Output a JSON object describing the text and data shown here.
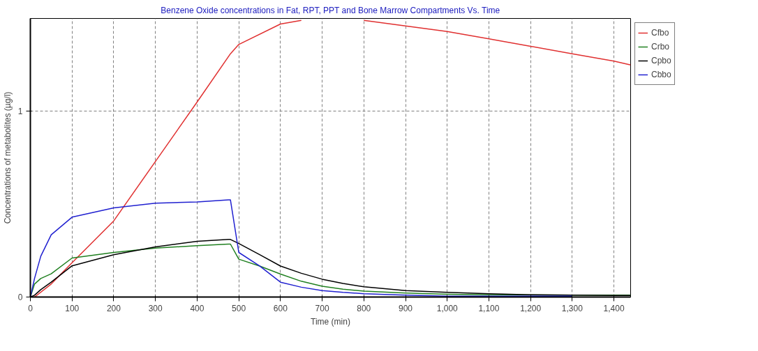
{
  "chart_data": {
    "type": "line",
    "title": "Benzene Oxide concentrations in Fat, RPT, PPT and Bone Marrow Compartments Vs. Time",
    "xlabel": "Time (min)",
    "ylabel": "Concentrations of metabolites (µg/l)",
    "x": [
      0,
      10,
      25,
      50,
      100,
      200,
      300,
      400,
      475,
      480,
      500,
      550,
      600,
      650,
      700,
      750,
      800,
      900,
      1000,
      1100,
      1200,
      1300,
      1400,
      1440
    ],
    "series": [
      {
        "name": "Cfbo",
        "color": "#e03030",
        "x": [
          0,
          10,
          50,
          100,
          200,
          300,
          400,
          480,
          500,
          600,
          650,
          700,
          750,
          800,
          900,
          1000,
          1100,
          1200,
          1300,
          1400,
          1440
        ],
        "values": [
          0,
          0,
          0.07,
          0.185,
          0.41,
          0.73,
          1.05,
          1.31,
          1.36,
          1.47,
          1.49,
          null,
          null,
          1.49,
          1.46,
          1.43,
          1.39,
          1.35,
          1.31,
          1.27,
          1.25
        ]
      },
      {
        "name": "Crbo",
        "color": "#208020",
        "values": [
          0,
          0.07,
          0.1,
          0.125,
          0.21,
          0.24,
          0.263,
          0.277,
          0.285,
          0.285,
          0.204,
          0.167,
          0.124,
          0.085,
          0.058,
          0.042,
          0.032,
          0.022,
          0.015,
          0.012,
          0.011,
          0.01,
          0.01,
          0.01
        ]
      },
      {
        "name": "Cpbo",
        "color": "#000000",
        "values": [
          0,
          0.01,
          0.04,
          0.08,
          0.168,
          0.228,
          0.27,
          0.3,
          0.31,
          0.31,
          0.288,
          0.228,
          0.167,
          0.128,
          0.096,
          0.073,
          0.055,
          0.035,
          0.025,
          0.018,
          0.012,
          0.01,
          0.008,
          0.008
        ]
      },
      {
        "name": "Cbbo",
        "color": "#2020d0",
        "values": [
          0,
          0.1,
          0.22,
          0.335,
          0.43,
          0.48,
          0.505,
          0.512,
          0.523,
          0.523,
          0.24,
          0.167,
          0.08,
          0.053,
          0.035,
          0.025,
          0.018,
          0.01,
          0.005,
          0.005,
          0.005,
          0.005,
          null,
          null
        ]
      }
    ],
    "xlim": [
      0,
      1440
    ],
    "ylim": [
      0,
      1.5
    ],
    "xticks": [
      0,
      100,
      200,
      300,
      400,
      500,
      600,
      700,
      800,
      900,
      {
        "value": 1000,
        "label": "1,000"
      },
      {
        "value": 1100,
        "label": "1,100"
      },
      {
        "value": 1200,
        "label": "1,200"
      },
      {
        "value": 1300,
        "label": "1,300"
      },
      {
        "value": 1400,
        "label": "1,400"
      }
    ],
    "yticks": [
      0,
      1
    ],
    "grid": true,
    "legend": "top right",
    "line_style": "solid",
    "marker": "none"
  }
}
